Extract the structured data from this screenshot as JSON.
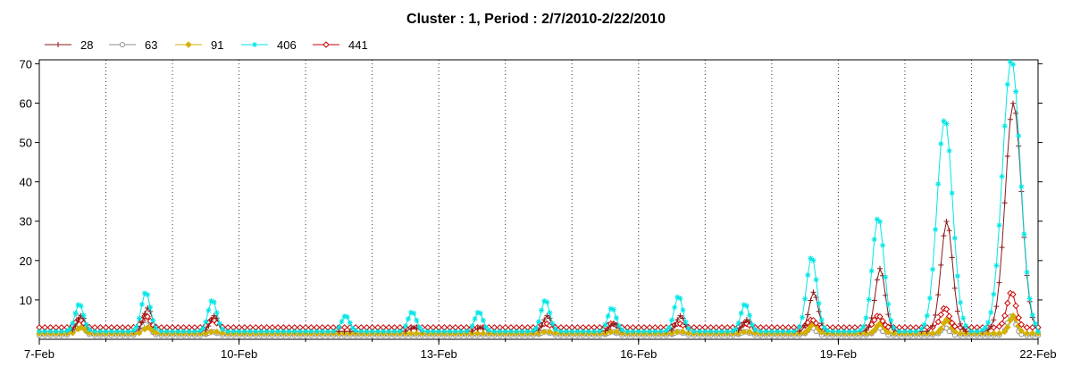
{
  "chart_data": {
    "type": "line",
    "title": "Cluster : 1, Period : 2/7/2010-2/22/2010",
    "xlabel": "",
    "ylabel": "",
    "x_ticks": [
      "7-Feb",
      "10-Feb",
      "13-Feb",
      "16-Feb",
      "19-Feb",
      "22-Feb"
    ],
    "x_range": [
      "2010-02-07",
      "2010-02-22"
    ],
    "ylim": [
      0,
      71
    ],
    "y_ticks": [
      10,
      20,
      30,
      40,
      50,
      60,
      70
    ],
    "grid": "vertical dotted lines at each day",
    "legend_position": "top-left",
    "colors": {
      "28": "#8b1a1a",
      "63": "#8c8c8c",
      "91": "#d4b000",
      "406": "#00e6e6",
      "441": "#cc0000"
    },
    "daily_peaks_note_values": {
      "days": [
        "2010-02-07",
        "2010-02-08",
        "2010-02-09",
        "2010-02-10",
        "2010-02-11",
        "2010-02-12",
        "2010-02-13",
        "2010-02-14",
        "2010-02-15",
        "2010-02-16",
        "2010-02-17",
        "2010-02-18",
        "2010-02-19",
        "2010-02-20",
        "2010-02-21"
      ]
    },
    "series": [
      {
        "name": "28",
        "baseline": 2,
        "peaks": [
          6,
          8,
          6,
          0,
          2,
          3,
          3,
          6,
          4,
          6,
          5,
          12,
          18,
          30,
          60
        ]
      },
      {
        "name": "63",
        "baseline": 1,
        "peaks": [
          6,
          5,
          2,
          0,
          1,
          1,
          1,
          2,
          2,
          2,
          2,
          3,
          3,
          3,
          6
        ]
      },
      {
        "name": "91",
        "baseline": 1.5,
        "peaks": [
          3,
          3,
          2,
          0,
          1,
          1,
          1,
          2,
          2,
          2,
          2,
          4,
          4,
          5,
          6
        ]
      },
      {
        "name": "406",
        "baseline": 2,
        "peaks": [
          9,
          12,
          10,
          0,
          6,
          7,
          7,
          10,
          8,
          11,
          9,
          21,
          31,
          56,
          71
        ]
      },
      {
        "name": "441",
        "baseline": 3,
        "peaks": [
          5,
          6,
          5,
          0,
          3,
          3,
          3,
          4,
          4,
          4,
          4,
          5,
          6,
          8,
          12
        ]
      }
    ]
  }
}
